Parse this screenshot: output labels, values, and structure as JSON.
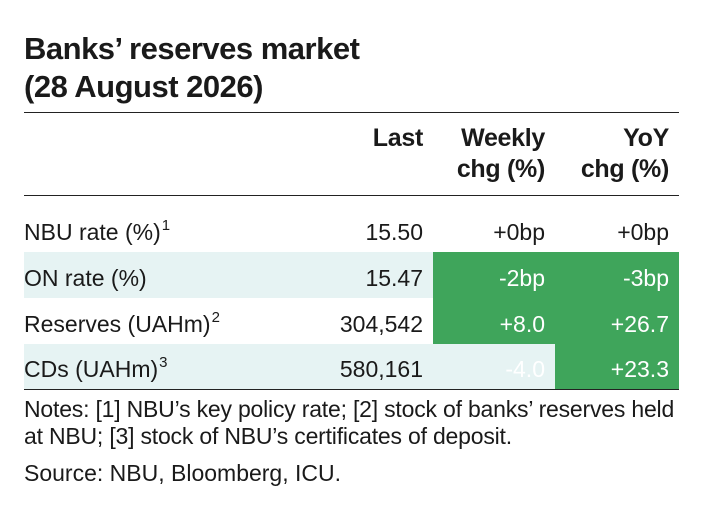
{
  "title_line1": "Banks’ reserves market",
  "title_line2": "(28 August 2026)",
  "headers": {
    "last": "Last",
    "weekly_line1": "Weekly",
    "weekly_line2": "chg (%)",
    "yoy_line1": "YoY",
    "yoy_line2": "chg (%)"
  },
  "rows": [
    {
      "label": "NBU rate (%)",
      "sup": "1",
      "last": "15.50",
      "weekly": "+0bp",
      "yoy": "+0bp"
    },
    {
      "label": "ON rate (%)",
      "sup": "",
      "last": "15.47",
      "weekly": "-2bp",
      "yoy": "-3bp"
    },
    {
      "label": "Reserves (UAHm)",
      "sup": "2",
      "last": "304,542",
      "weekly": "+8.0",
      "yoy": "+26.7"
    },
    {
      "label": "CDs (UAHm)",
      "sup": "3",
      "last": "580,161",
      "weekly": "-4.0",
      "yoy": "+23.3"
    }
  ],
  "notes": "Notes: [1] NBU’s key policy rate; [2] stock of banks’ reserves held at NBU; [3] stock of NBU’s certificates of deposit.",
  "source": "Source: NBU, Bloomberg, ICU.",
  "colors": {
    "positive": "#3fa55b",
    "negative": "#a40e10",
    "row_shade": "#e6f3f3"
  }
}
